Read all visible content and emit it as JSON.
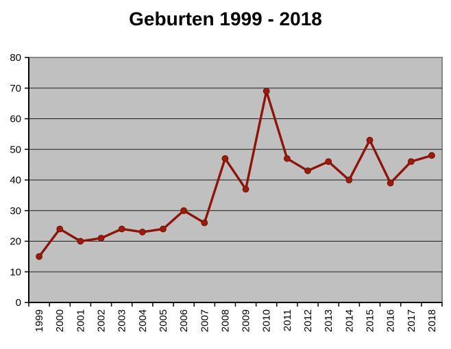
{
  "page": {
    "background": "#ffffff"
  },
  "header": {
    "title": "Geburten 1999 - 2018"
  },
  "chart_data": {
    "type": "line",
    "title": "Geburten 1999 - 2018",
    "categories": [
      "1999",
      "2000",
      "2001",
      "2002",
      "2003",
      "2004",
      "2005",
      "2006",
      "2007",
      "2008",
      "2009",
      "2010",
      "2011",
      "2012",
      "2013",
      "2014",
      "2015",
      "2016",
      "2017",
      "2018"
    ],
    "values": [
      15,
      24,
      20,
      21,
      24,
      23,
      24,
      30,
      26,
      47,
      37,
      69,
      47,
      43,
      46,
      40,
      53,
      39,
      46,
      48
    ],
    "xlabel": "",
    "ylabel": "",
    "ylim": [
      0,
      80
    ],
    "yticks": [
      0,
      10,
      20,
      30,
      40,
      50,
      60,
      70,
      80
    ],
    "grid": "horizontal",
    "legend": "none",
    "marker": "circle",
    "x_tick_label_rotation": -90,
    "colors": {
      "line": "#8e1407",
      "marker_fill": "#9c1c0b",
      "marker_edge": "#701003",
      "plot_background": "#c0c0c0",
      "plot_border": "#858585",
      "gridline": "#1a1a1a",
      "axis": "#000000",
      "label_text": "#000000",
      "title_text": "#000000"
    }
  }
}
